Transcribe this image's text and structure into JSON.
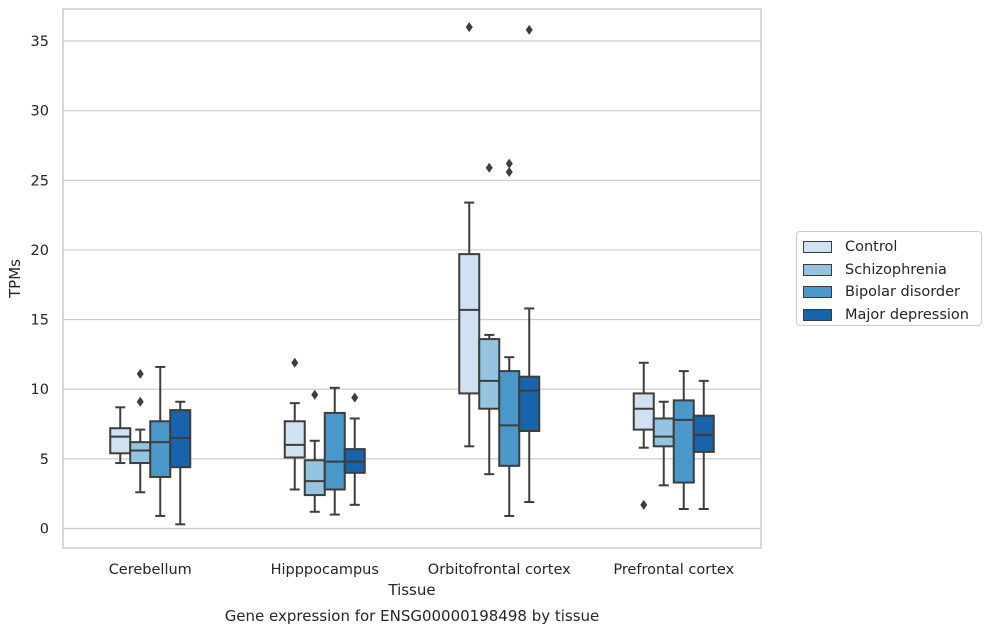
{
  "chart_data": {
    "type": "boxplot",
    "title": "Gene expression for ENSG00000198498 by tissue",
    "xlabel": "Tissue",
    "ylabel": "TPMs",
    "ylim": [
      -1.4,
      37.3
    ],
    "yticks": [
      0,
      5,
      10,
      15,
      20,
      25,
      30,
      35
    ],
    "grid": true,
    "legend_position": "right",
    "categories": [
      "Cerebellum",
      "Hipppocampus",
      "Orbitofrontal cortex",
      "Prefrontal cortex"
    ],
    "series": [
      {
        "name": "Control",
        "color": "#d0e1f2",
        "boxes": [
          {
            "whislo": 4.7,
            "q1": 5.4,
            "med": 6.6,
            "q3": 7.2,
            "whishi": 8.7,
            "fliers": []
          },
          {
            "whislo": 2.8,
            "q1": 5.1,
            "med": 6.0,
            "q3": 7.7,
            "whishi": 9.0,
            "fliers": [
              11.9
            ]
          },
          {
            "whislo": 5.9,
            "q1": 9.7,
            "med": 15.7,
            "q3": 19.7,
            "whishi": 23.4,
            "fliers": [
              36.0
            ]
          },
          {
            "whislo": 5.8,
            "q1": 7.1,
            "med": 8.6,
            "q3": 9.7,
            "whishi": 11.9,
            "fliers": [
              1.7
            ]
          }
        ]
      },
      {
        "name": "Schizophrenia",
        "color": "#94c4df",
        "boxes": [
          {
            "whislo": 2.6,
            "q1": 4.7,
            "med": 5.6,
            "q3": 6.2,
            "whishi": 7.1,
            "fliers": [
              9.1,
              11.1
            ]
          },
          {
            "whislo": 1.2,
            "q1": 2.4,
            "med": 3.4,
            "q3": 4.9,
            "whishi": 6.3,
            "fliers": [
              9.6
            ]
          },
          {
            "whislo": 3.9,
            "q1": 8.6,
            "med": 10.6,
            "q3": 13.6,
            "whishi": 13.9,
            "fliers": [
              25.9
            ]
          },
          {
            "whislo": 3.1,
            "q1": 5.9,
            "med": 6.6,
            "q3": 7.9,
            "whishi": 9.1,
            "fliers": []
          }
        ]
      },
      {
        "name": "Bipolar disorder",
        "color": "#4a98c9",
        "boxes": [
          {
            "whislo": 0.9,
            "q1": 3.7,
            "med": 6.2,
            "q3": 7.7,
            "whishi": 11.6,
            "fliers": []
          },
          {
            "whislo": 1.0,
            "q1": 2.8,
            "med": 4.8,
            "q3": 8.3,
            "whishi": 10.1,
            "fliers": []
          },
          {
            "whislo": 0.9,
            "q1": 4.5,
            "med": 7.4,
            "q3": 11.3,
            "whishi": 12.3,
            "fliers": [
              25.6,
              26.2
            ]
          },
          {
            "whislo": 1.4,
            "q1": 3.3,
            "med": 7.8,
            "q3": 9.2,
            "whishi": 11.3,
            "fliers": []
          }
        ]
      },
      {
        "name": "Major depression",
        "color": "#1764ab",
        "boxes": [
          {
            "whislo": 0.3,
            "q1": 4.4,
            "med": 6.5,
            "q3": 8.5,
            "whishi": 9.1,
            "fliers": []
          },
          {
            "whislo": 1.7,
            "q1": 4.0,
            "med": 4.8,
            "q3": 5.7,
            "whishi": 7.9,
            "fliers": [
              9.4
            ]
          },
          {
            "whislo": 1.9,
            "q1": 7.0,
            "med": 9.9,
            "q3": 10.9,
            "whishi": 15.8,
            "fliers": [
              35.8
            ]
          },
          {
            "whislo": 1.4,
            "q1": 5.5,
            "med": 6.7,
            "q3": 8.1,
            "whishi": 10.6,
            "fliers": []
          }
        ]
      }
    ]
  }
}
